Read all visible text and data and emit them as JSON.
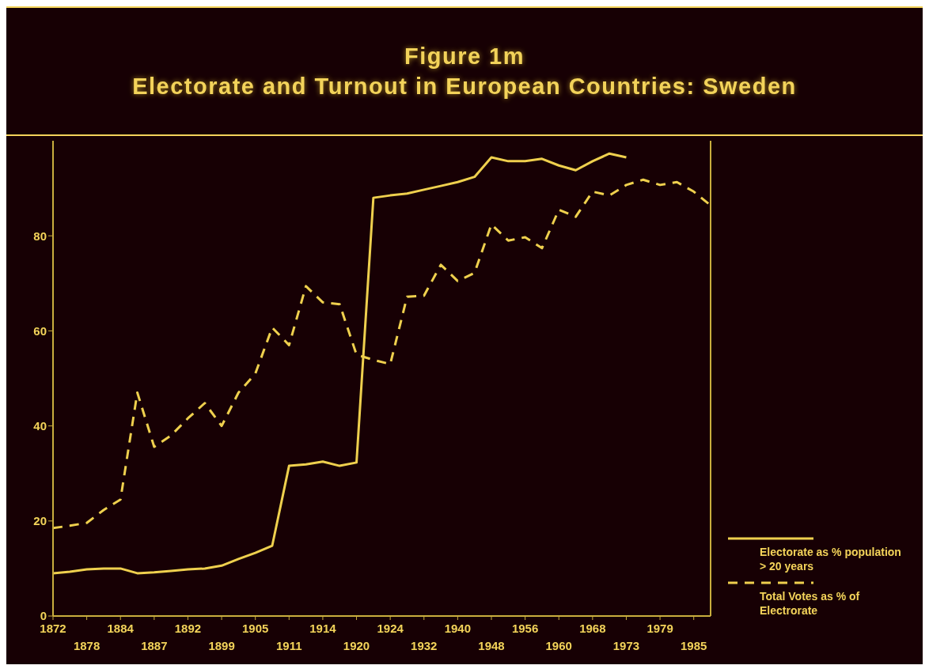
{
  "chart_data": {
    "type": "line",
    "title": "Figure 1m",
    "subtitle": "Electorate and Turnout in European Countries: Sweden",
    "categories": [
      "1872",
      null,
      "1878",
      null,
      "1884",
      null,
      "1887",
      null,
      "1892",
      null,
      "1899",
      null,
      "1905",
      null,
      "1911",
      null,
      "1914",
      null,
      "1920",
      null,
      "1924",
      null,
      "1932",
      null,
      "1940",
      null,
      "1948",
      null,
      "1956",
      null,
      "1960",
      null,
      "1968",
      null,
      "1973",
      null,
      "1979",
      null,
      "1985",
      null
    ],
    "series": [
      {
        "name": "Electorate as % population > 20 years",
        "color": "#efd04e",
        "line_style": "solid",
        "values": [
          9,
          9.3,
          9.8,
          10,
          10,
          9,
          9.2,
          9.5,
          9.8,
          10,
          10.6,
          12,
          13.3,
          14.8,
          31.6,
          31.9,
          32.5,
          31.6,
          32.3,
          88,
          88.5,
          88.9,
          89.7,
          90.5,
          91.3,
          92.4,
          96.5,
          95.7,
          95.7,
          96.2,
          94.8,
          93.8,
          95.7,
          97.3,
          96.5,
          null,
          null,
          null,
          null,
          null
        ]
      },
      {
        "name": "Total Votes as % of Electrorate",
        "color": "#efd04e",
        "line_style": "dashed",
        "values": [
          18.5,
          19,
          19.6,
          22.3,
          24.5,
          47,
          35.6,
          38,
          41.6,
          44.8,
          40,
          47,
          51,
          60.7,
          57,
          69.4,
          66,
          65.6,
          55,
          53.9,
          53,
          67.2,
          67.4,
          73.9,
          70.5,
          72.2,
          82.4,
          79,
          79.7,
          77.4,
          85.5,
          84,
          89.3,
          88.5,
          90.7,
          91.8,
          90.7,
          91.3,
          89.3,
          86.4
        ]
      }
    ],
    "ylim": [
      0,
      100
    ],
    "yticks": [
      0,
      20,
      40,
      60,
      80
    ],
    "grid": false,
    "legend": "bottom right",
    "marker": "none"
  }
}
